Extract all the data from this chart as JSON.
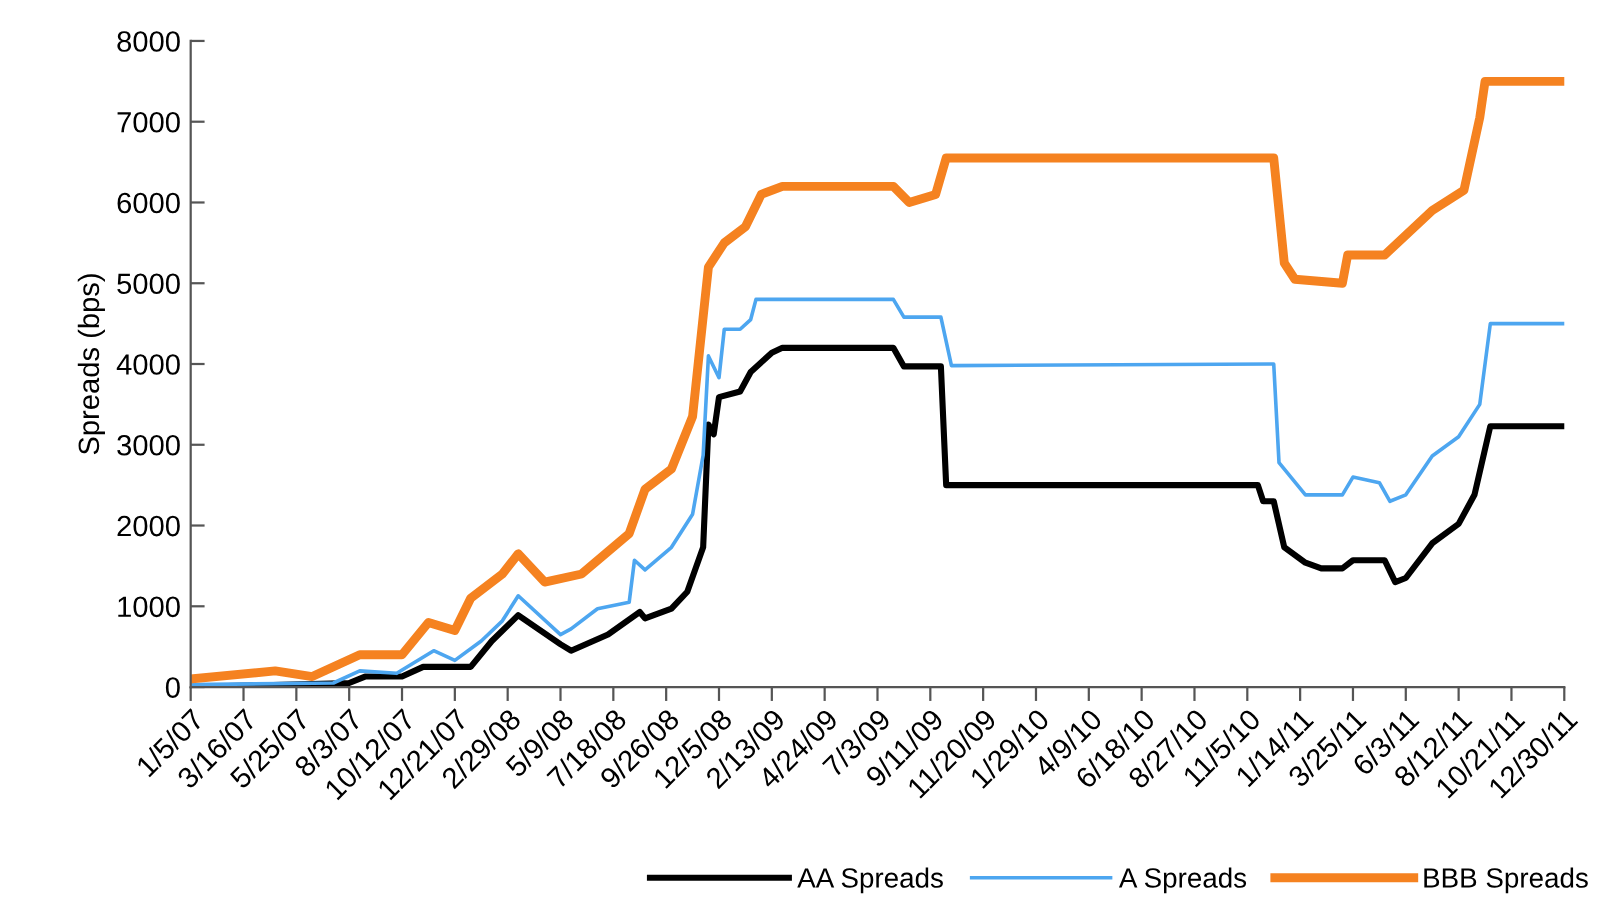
{
  "chart_data": {
    "type": "line",
    "ylabel": "Spreads (bps)",
    "xlim": [
      "2007-01-05",
      "2011-12-30"
    ],
    "xticks": [
      {
        "value": "2007-01-05",
        "label": "1/5/07"
      },
      {
        "value": "2007-03-16",
        "label": "3/16/07"
      },
      {
        "value": "2007-05-25",
        "label": "5/25/07"
      },
      {
        "value": "2007-08-03",
        "label": "8/3/07"
      },
      {
        "value": "2007-10-12",
        "label": "10/12/07"
      },
      {
        "value": "2007-12-21",
        "label": "12/21/07"
      },
      {
        "value": "2008-02-29",
        "label": "2/29/08"
      },
      {
        "value": "2008-05-09",
        "label": "5/9/08"
      },
      {
        "value": "2008-07-18",
        "label": "7/18/08"
      },
      {
        "value": "2008-09-26",
        "label": "9/26/08"
      },
      {
        "value": "2008-12-05",
        "label": "12/5/08"
      },
      {
        "value": "2009-02-13",
        "label": "2/13/09"
      },
      {
        "value": "2009-04-24",
        "label": "4/24/09"
      },
      {
        "value": "2009-07-03",
        "label": "7/3/09"
      },
      {
        "value": "2009-09-11",
        "label": "9/11/09"
      },
      {
        "value": "2009-11-20",
        "label": "11/20/09"
      },
      {
        "value": "2010-01-29",
        "label": "1/29/10"
      },
      {
        "value": "2010-04-09",
        "label": "4/9/10"
      },
      {
        "value": "2010-06-18",
        "label": "6/18/10"
      },
      {
        "value": "2010-08-27",
        "label": "8/27/10"
      },
      {
        "value": "2010-11-05",
        "label": "11/5/10"
      },
      {
        "value": "2011-01-14",
        "label": "1/14/11"
      },
      {
        "value": "2011-03-25",
        "label": "3/25/11"
      },
      {
        "value": "2011-06-03",
        "label": "6/3/11"
      },
      {
        "value": "2011-08-12",
        "label": "8/12/11"
      },
      {
        "value": "2011-10-21",
        "label": "10/21/11"
      },
      {
        "value": "2011-12-30",
        "label": "12/30/11"
      }
    ],
    "ylim": [
      0,
      8000
    ],
    "yticks": [
      0,
      1000,
      2000,
      3000,
      4000,
      5000,
      6000,
      7000,
      8000
    ],
    "grid": false,
    "legend": "bottom right",
    "marker": "none",
    "line_style": "solid",
    "series": [
      {
        "name": "AA Spreads",
        "color": "#000000",
        "x": [
          "2007-01-05",
          "2007-08-03",
          "2007-08-24",
          "2007-10-12",
          "2007-11-09",
          "2008-01-11",
          "2008-02-08",
          "2008-03-14",
          "2008-05-09",
          "2008-05-23",
          "2008-07-11",
          "2008-08-22",
          "2008-08-29",
          "2008-10-03",
          "2008-10-24",
          "2008-11-14",
          "2008-11-21",
          "2008-11-28",
          "2008-12-05",
          "2009-01-02",
          "2009-01-16",
          "2009-02-13",
          "2009-02-27",
          "2009-07-24",
          "2009-08-07",
          "2009-09-25",
          "2009-10-02",
          "2010-11-19",
          "2010-11-26",
          "2010-12-10",
          "2010-12-24",
          "2011-01-21",
          "2011-02-11",
          "2011-03-11",
          "2011-03-25",
          "2011-05-06",
          "2011-05-20",
          "2011-06-03",
          "2011-07-08",
          "2011-08-12",
          "2011-09-02",
          "2011-09-23",
          "2011-12-30"
        ],
        "values": [
          0,
          50,
          130,
          130,
          250,
          250,
          570,
          890,
          530,
          450,
          650,
          930,
          850,
          970,
          1180,
          1730,
          3250,
          3130,
          3590,
          3660,
          3900,
          4140,
          4200,
          4200,
          3970,
          3970,
          2500,
          2500,
          2300,
          2300,
          1730,
          1540,
          1470,
          1470,
          1570,
          1570,
          1300,
          1350,
          1780,
          2020,
          2380,
          3230,
          3230
        ]
      },
      {
        "name": "A Spreads",
        "color": "#4da6f0",
        "x": [
          "2007-01-05",
          "2007-07-13",
          "2007-08-17",
          "2007-10-05",
          "2007-11-23",
          "2007-12-21",
          "2008-01-25",
          "2008-02-22",
          "2008-03-14",
          "2008-05-09",
          "2008-05-23",
          "2008-06-27",
          "2008-08-08",
          "2008-08-15",
          "2008-08-29",
          "2008-10-03",
          "2008-10-31",
          "2008-11-14",
          "2008-11-21",
          "2008-12-05",
          "2008-12-12",
          "2009-01-02",
          "2009-01-16",
          "2009-01-23",
          "2009-07-24",
          "2009-08-07",
          "2009-09-25",
          "2009-10-09",
          "2010-12-10",
          "2010-12-17",
          "2011-01-21",
          "2011-03-11",
          "2011-03-25",
          "2011-04-29",
          "2011-05-13",
          "2011-06-03",
          "2011-07-08",
          "2011-08-12",
          "2011-09-09",
          "2011-09-23",
          "2011-12-30"
        ],
        "values": [
          30,
          50,
          200,
          170,
          450,
          330,
          570,
          820,
          1130,
          650,
          720,
          970,
          1050,
          1570,
          1450,
          1730,
          2140,
          2870,
          4100,
          3830,
          4430,
          4430,
          4550,
          4800,
          4800,
          4580,
          4580,
          3980,
          4000,
          2780,
          2380,
          2380,
          2600,
          2530,
          2300,
          2380,
          2860,
          3100,
          3500,
          4500,
          4500
        ]
      },
      {
        "name": "BBB Spreads",
        "color": "#f58220",
        "x": [
          "2007-01-05",
          "2007-04-27",
          "2007-06-15",
          "2007-08-17",
          "2007-10-12",
          "2007-11-16",
          "2007-12-21",
          "2008-01-11",
          "2008-02-22",
          "2008-03-14",
          "2008-04-18",
          "2008-06-06",
          "2008-08-08",
          "2008-08-29",
          "2008-10-03",
          "2008-10-31",
          "2008-11-21",
          "2008-12-12",
          "2009-01-09",
          "2009-01-30",
          "2009-02-27",
          "2009-07-24",
          "2009-08-14",
          "2009-09-18",
          "2009-10-02",
          "2010-12-10",
          "2010-12-24",
          "2011-01-07",
          "2011-03-11",
          "2011-03-18",
          "2011-05-06",
          "2011-07-08",
          "2011-08-19",
          "2011-09-09",
          "2011-09-16",
          "2011-12-30"
        ],
        "values": [
          100,
          200,
          130,
          400,
          400,
          800,
          700,
          1100,
          1400,
          1650,
          1300,
          1400,
          1900,
          2450,
          2700,
          3350,
          5200,
          5500,
          5700,
          6100,
          6200,
          6200,
          6000,
          6100,
          6550,
          6550,
          5250,
          5050,
          5000,
          5350,
          5350,
          5900,
          6150,
          7050,
          7500,
          7500
        ]
      }
    ]
  }
}
